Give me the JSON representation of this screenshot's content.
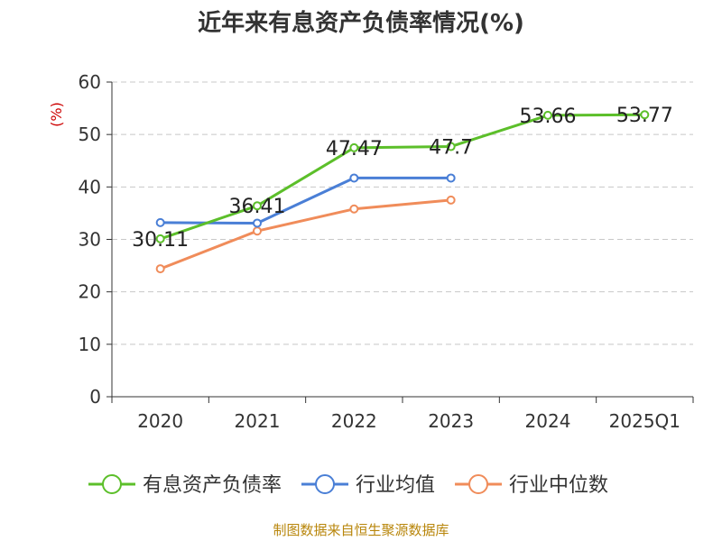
{
  "chart_data": {
    "type": "line",
    "title": "近年来有息资产负债率情况(%)",
    "ylabel": "(%)",
    "categories": [
      "2020",
      "2021",
      "2022",
      "2023",
      "2024",
      "2025Q1"
    ],
    "ylim": [
      0,
      60
    ],
    "yticks": [
      0,
      10,
      20,
      30,
      40,
      50,
      60
    ],
    "grid": true,
    "legend_position": "bottom",
    "series": [
      {
        "name": "有息资产负债率",
        "color": "#5cbf2a",
        "values": [
          30.11,
          36.41,
          47.47,
          47.7,
          53.66,
          53.77
        ],
        "labels": [
          "30.11",
          "36.41",
          "47.47",
          "47.7",
          "53.66",
          "53.77"
        ]
      },
      {
        "name": "行业均值",
        "color": "#4a7fd6",
        "values": [
          33.2,
          33.1,
          41.7,
          41.7,
          null,
          null
        ]
      },
      {
        "name": "行业中位数",
        "color": "#f08c5a",
        "values": [
          24.4,
          31.6,
          35.8,
          37.5,
          null,
          null
        ]
      }
    ]
  },
  "source": "制图数据来自恒生聚源数据库"
}
